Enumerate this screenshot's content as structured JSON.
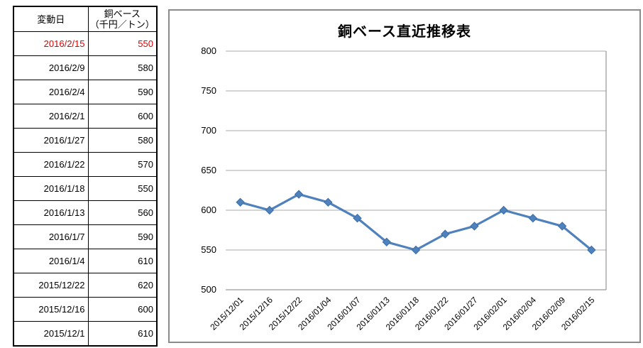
{
  "table": {
    "header": {
      "date": "変動日",
      "value_line1": "銅ベース",
      "value_line2": "（千円／トン）"
    },
    "rows": [
      {
        "date": "2016/2/15",
        "value": "550",
        "highlight": true
      },
      {
        "date": "2016/2/9",
        "value": "580",
        "highlight": false
      },
      {
        "date": "2016/2/4",
        "value": "590",
        "highlight": false
      },
      {
        "date": "2016/2/1",
        "value": "600",
        "highlight": false
      },
      {
        "date": "2016/1/27",
        "value": "580",
        "highlight": false
      },
      {
        "date": "2016/1/22",
        "value": "570",
        "highlight": false
      },
      {
        "date": "2016/1/18",
        "value": "550",
        "highlight": false
      },
      {
        "date": "2016/1/13",
        "value": "560",
        "highlight": false
      },
      {
        "date": "2016/1/7",
        "value": "590",
        "highlight": false
      },
      {
        "date": "2016/1/4",
        "value": "610",
        "highlight": false
      },
      {
        "date": "2015/12/22",
        "value": "620",
        "highlight": false
      },
      {
        "date": "2015/12/16",
        "value": "600",
        "highlight": false
      },
      {
        "date": "2015/12/1",
        "value": "610",
        "highlight": false
      }
    ]
  },
  "chart_data": {
    "type": "line",
    "title": "銅ベース直近推移表",
    "x": [
      "2015/12/01",
      "2015/12/16",
      "2015/12/22",
      "2016/01/04",
      "2016/01/07",
      "2016/01/13",
      "2016/01/18",
      "2016/01/22",
      "2016/01/27",
      "2016/02/01",
      "2016/02/04",
      "2016/02/09",
      "2016/02/15"
    ],
    "values": [
      610,
      600,
      620,
      610,
      590,
      560,
      550,
      570,
      580,
      600,
      590,
      580,
      550
    ],
    "xlabel": "",
    "ylabel": "",
    "ylim": [
      500,
      800
    ],
    "yticks": [
      500,
      550,
      600,
      650,
      700,
      750,
      800
    ],
    "grid": true,
    "legend": "none",
    "marker": "diamond",
    "x_tick_rotation": 45
  },
  "colors": {
    "series_line": "#4F81BD",
    "marker_edge": "#3A6DA6",
    "highlight_text": "#DD0000",
    "gridline": "#ABABAB",
    "axis_line": "#808080",
    "chart_border": "#8B8B8B",
    "table_border": "#000000",
    "text": "#000000"
  }
}
